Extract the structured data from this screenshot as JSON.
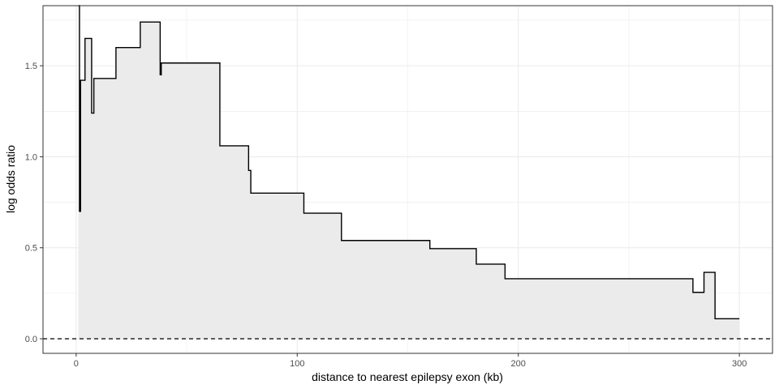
{
  "chart_data": {
    "type": "area",
    "title": "",
    "xlabel": "distance to nearest epilepsy exon (kb)",
    "ylabel": "log odds ratio",
    "xlim": [
      -15,
      315
    ],
    "ylim": [
      -0.08,
      1.83
    ],
    "x_ticks": [
      0,
      100,
      200,
      300
    ],
    "x_tick_labels": [
      "0",
      "100",
      "200",
      "300"
    ],
    "y_ticks": [
      0.0,
      0.5,
      1.0,
      1.5
    ],
    "y_tick_labels": [
      "0.0",
      "0.5",
      "1.0",
      "1.5"
    ],
    "grid": true,
    "step": true,
    "reference_line": {
      "y": 0,
      "style": "dashed"
    },
    "series": [
      {
        "x": [
          1,
          1.5,
          2,
          4,
          7,
          8,
          9,
          18,
          29,
          38,
          38.5,
          65,
          78,
          79,
          103,
          120,
          160,
          181,
          194,
          279,
          284,
          289,
          300
        ],
        "y": [
          1.85,
          0.7,
          1.42,
          1.65,
          1.24,
          1.43,
          1.43,
          1.6,
          1.74,
          1.45,
          1.515,
          1.06,
          0.925,
          0.8,
          0.69,
          0.54,
          0.495,
          0.41,
          0.33,
          0.255,
          0.365,
          0.11,
          0.11
        ]
      }
    ],
    "colors": {
      "line": "#000000",
      "fill": "#ebebeb",
      "grid": "#ebebeb",
      "reference": "#000000"
    }
  }
}
